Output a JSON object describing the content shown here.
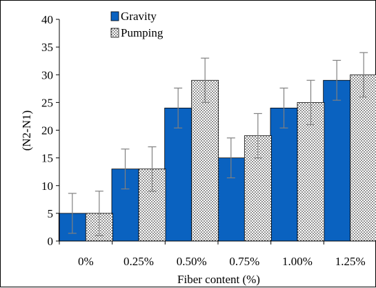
{
  "chart_data": {
    "type": "bar",
    "xlabel": "Fiber content (%)",
    "ylabel": "(N2-N1)",
    "ylim": [
      0,
      40
    ],
    "yticks": [
      0,
      5,
      10,
      15,
      20,
      25,
      30,
      35,
      40
    ],
    "categories": [
      "0%",
      "0.25%",
      "0.50%",
      "0.75%",
      "1.00%",
      "1.25%"
    ],
    "series": [
      {
        "name": "Gravity",
        "fill": "solid",
        "color": "#0a62c0",
        "values": [
          5,
          13,
          24,
          15,
          24,
          29
        ],
        "error": [
          3.6,
          3.6,
          3.6,
          3.6,
          3.6,
          3.6
        ]
      },
      {
        "name": "Pumping",
        "fill": "dotted",
        "color": "#ffffff",
        "values": [
          5,
          13,
          29,
          19,
          25,
          30
        ],
        "error": [
          4,
          4,
          4,
          4,
          4,
          4
        ]
      }
    ],
    "legend": "top-left",
    "grid": false,
    "colors": {
      "gravity": "#0a62c0",
      "axis": "#000000",
      "errorbar": "#808080"
    }
  }
}
